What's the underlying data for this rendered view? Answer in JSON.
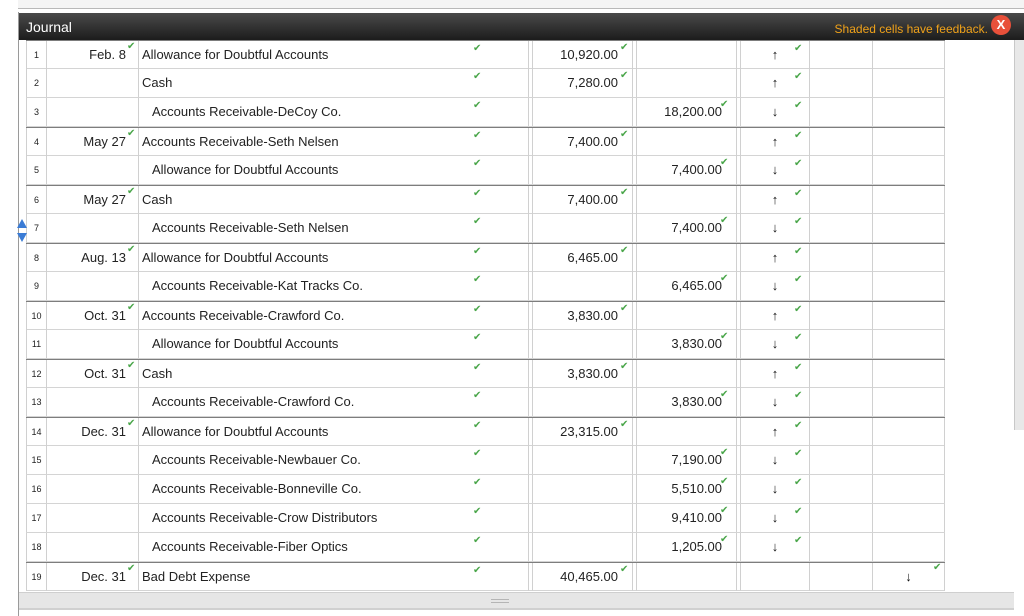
{
  "journal": {
    "title": "Journal",
    "feedback_note": "Shaded cells have feedback.",
    "close_label": "X"
  },
  "rows": [
    {
      "num": "1",
      "date": "Feb. 8",
      "account": "Allowance for Doubtful Accounts",
      "indent": false,
      "debit": "10,920.00",
      "credit": "",
      "dir1": "↑",
      "dir3": "",
      "group": true
    },
    {
      "num": "2",
      "date": "",
      "account": "Cash",
      "indent": false,
      "debit": "7,280.00",
      "credit": "",
      "dir1": "↑",
      "dir3": "",
      "group": false
    },
    {
      "num": "3",
      "date": "",
      "account": "Accounts Receivable-DeCoy Co.",
      "indent": true,
      "debit": "",
      "credit": "18,200.00",
      "dir1": "↓",
      "dir3": "",
      "group": false
    },
    {
      "num": "4",
      "date": "May 27",
      "account": "Accounts Receivable-Seth Nelsen",
      "indent": false,
      "debit": "7,400.00",
      "credit": "",
      "dir1": "↑",
      "dir3": "",
      "group": true
    },
    {
      "num": "5",
      "date": "",
      "account": "Allowance for Doubtful Accounts",
      "indent": true,
      "debit": "",
      "credit": "7,400.00",
      "dir1": "↓",
      "dir3": "",
      "group": false
    },
    {
      "num": "6",
      "date": "May 27",
      "account": "Cash",
      "indent": false,
      "debit": "7,400.00",
      "credit": "",
      "dir1": "↑",
      "dir3": "",
      "group": true
    },
    {
      "num": "7",
      "date": "",
      "account": "Accounts Receivable-Seth Nelsen",
      "indent": true,
      "debit": "",
      "credit": "7,400.00",
      "dir1": "↓",
      "dir3": "",
      "group": false
    },
    {
      "num": "8",
      "date": "Aug. 13",
      "account": "Allowance for Doubtful Accounts",
      "indent": false,
      "debit": "6,465.00",
      "credit": "",
      "dir1": "↑",
      "dir3": "",
      "group": true
    },
    {
      "num": "9",
      "date": "",
      "account": "Accounts Receivable-Kat Tracks Co.",
      "indent": true,
      "debit": "",
      "credit": "6,465.00",
      "dir1": "↓",
      "dir3": "",
      "group": false
    },
    {
      "num": "10",
      "date": "Oct. 31",
      "account": "Accounts Receivable-Crawford Co.",
      "indent": false,
      "debit": "3,830.00",
      "credit": "",
      "dir1": "↑",
      "dir3": "",
      "group": true
    },
    {
      "num": "11",
      "date": "",
      "account": "Allowance for Doubtful Accounts",
      "indent": true,
      "debit": "",
      "credit": "3,830.00",
      "dir1": "↓",
      "dir3": "",
      "group": false
    },
    {
      "num": "12",
      "date": "Oct. 31",
      "account": "Cash",
      "indent": false,
      "debit": "3,830.00",
      "credit": "",
      "dir1": "↑",
      "dir3": "",
      "group": true
    },
    {
      "num": "13",
      "date": "",
      "account": "Accounts Receivable-Crawford Co.",
      "indent": true,
      "debit": "",
      "credit": "3,830.00",
      "dir1": "↓",
      "dir3": "",
      "group": false
    },
    {
      "num": "14",
      "date": "Dec. 31",
      "account": "Allowance for Doubtful Accounts",
      "indent": false,
      "debit": "23,315.00",
      "credit": "",
      "dir1": "↑",
      "dir3": "",
      "group": true
    },
    {
      "num": "15",
      "date": "",
      "account": "Accounts Receivable-Newbauer Co.",
      "indent": true,
      "debit": "",
      "credit": "7,190.00",
      "dir1": "↓",
      "dir3": "",
      "group": false
    },
    {
      "num": "16",
      "date": "",
      "account": "Accounts Receivable-Bonneville Co.",
      "indent": true,
      "debit": "",
      "credit": "5,510.00",
      "dir1": "↓",
      "dir3": "",
      "group": false
    },
    {
      "num": "17",
      "date": "",
      "account": "Accounts Receivable-Crow Distributors",
      "indent": true,
      "debit": "",
      "credit": "9,410.00",
      "dir1": "↓",
      "dir3": "",
      "group": false
    },
    {
      "num": "18",
      "date": "",
      "account": "Accounts Receivable-Fiber Optics",
      "indent": true,
      "debit": "",
      "credit": "1,205.00",
      "dir1": "↓",
      "dir3": "",
      "group": false
    },
    {
      "num": "19",
      "date": "Dec. 31",
      "account": "Bad Debt Expense",
      "indent": false,
      "debit": "40,465.00",
      "credit": "",
      "dir1": "",
      "dir3": "↓",
      "group": true
    }
  ],
  "colors": {
    "check": "#4aa64a",
    "feedback": "#f0a21a",
    "close": "#e8503a",
    "scroll_arrow": "#3a7bd5"
  },
  "icons": {
    "check": "check-icon",
    "close": "close-icon",
    "up": "arrow-up-icon",
    "down": "arrow-down-icon",
    "scroll": "row-scroll-icon"
  }
}
